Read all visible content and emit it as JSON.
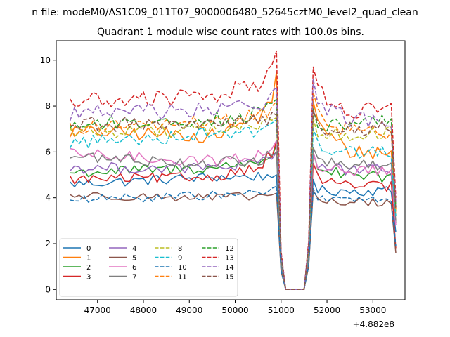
{
  "figure": {
    "suptitle": "n file: modeM0/AS1C09_011T07_9000006480_52645cztM0_level2_quad_clean"
  },
  "chart_data": {
    "type": "line",
    "title": "Quadrant 1 module wise count rates with 100.0s bins.",
    "xlabel": "",
    "ylabel": "",
    "xlim": [
      46100,
      53700
    ],
    "ylim": [
      -0.45,
      10.85
    ],
    "x_offset_label": "+4.882e8",
    "xticks": [
      47000,
      48000,
      49000,
      50000,
      51000,
      52000,
      53000
    ],
    "xtick_labels": [
      "47000",
      "48000",
      "49000",
      "50000",
      "51000",
      "52000",
      "53000"
    ],
    "yticks": [
      0,
      2,
      4,
      6,
      8,
      10
    ],
    "ytick_labels": [
      "0",
      "2",
      "4",
      "6",
      "8",
      "10"
    ],
    "grid": false,
    "legend_position": "lower-left",
    "legend_columns": 4,
    "x_start": 46400,
    "x_step": 100,
    "n_points": 72,
    "profile": {
      "gap_start_x": 51000,
      "gap_end_x": 51600,
      "peak_before_gap_x": 50900,
      "peak_after_gap_x": 51700,
      "last_x": 53500
    },
    "series": [
      {
        "name": "0",
        "color": "#1f77b4",
        "dash": "solid",
        "level_start": 4.6,
        "level_mid": 4.9,
        "level_end": 4.3,
        "peak_before": 5.0,
        "peak_after": 4.8,
        "end_value": 2.5
      },
      {
        "name": "1",
        "color": "#ff7f0e",
        "dash": "solid",
        "level_start": 6.9,
        "level_mid": 6.7,
        "level_end": 6.0,
        "peak_before": 9.5,
        "peak_after": 8.2,
        "end_value": 3.2
      },
      {
        "name": "2",
        "color": "#2ca02c",
        "dash": "solid",
        "level_start": 5.1,
        "level_mid": 5.3,
        "level_end": 4.9,
        "peak_before": 6.3,
        "peak_after": 6.0,
        "end_value": 2.9
      },
      {
        "name": "3",
        "color": "#d62728",
        "dash": "solid",
        "level_start": 4.8,
        "level_mid": 4.9,
        "level_end": 4.5,
        "peak_before": 6.5,
        "peak_after": 5.5,
        "end_value": 1.8
      },
      {
        "name": "4",
        "color": "#9467bd",
        "dash": "solid",
        "level_start": 5.3,
        "level_mid": 5.3,
        "level_end": 5.2,
        "peak_before": 6.0,
        "peak_after": 6.0,
        "end_value": 2.8
      },
      {
        "name": "5",
        "color": "#8c564b",
        "dash": "solid",
        "level_start": 4.1,
        "level_mid": 4.0,
        "level_end": 3.8,
        "peak_before": 4.2,
        "peak_after": 4.3,
        "end_value": 1.6
      },
      {
        "name": "6",
        "color": "#e377c2",
        "dash": "solid",
        "level_start": 5.9,
        "level_mid": 5.6,
        "level_end": 5.2,
        "peak_before": 6.5,
        "peak_after": 6.0,
        "end_value": 2.8
      },
      {
        "name": "7",
        "color": "#7f7f7f",
        "dash": "solid",
        "level_start": 5.8,
        "level_mid": 5.5,
        "level_end": 5.4,
        "peak_before": 6.0,
        "peak_after": 6.2,
        "end_value": 3.0
      },
      {
        "name": "8",
        "color": "#bcbd22",
        "dash": "dashed",
        "level_start": 6.9,
        "level_mid": 7.0,
        "level_end": 6.8,
        "peak_before": 7.5,
        "peak_after": 7.5,
        "end_value": 3.4
      },
      {
        "name": "9",
        "color": "#17becf",
        "dash": "dashed",
        "level_start": 6.4,
        "level_mid": 6.8,
        "level_end": 6.0,
        "peak_before": 7.4,
        "peak_after": 7.0,
        "end_value": 3.2
      },
      {
        "name": "10",
        "color": "#1f77b4",
        "dash": "dashed",
        "level_start": 3.9,
        "level_mid": 4.1,
        "level_end": 3.9,
        "peak_before": 4.5,
        "peak_after": 4.4,
        "end_value": 1.9
      },
      {
        "name": "11",
        "color": "#ff7f0e",
        "dash": "dashed",
        "level_start": 7.0,
        "level_mid": 7.3,
        "level_end": 6.9,
        "peak_before": 8.2,
        "peak_after": 8.6,
        "end_value": 3.5
      },
      {
        "name": "12",
        "color": "#2ca02c",
        "dash": "dashed",
        "level_start": 7.2,
        "level_mid": 7.4,
        "level_end": 7.3,
        "peak_before": 8.3,
        "peak_after": 7.9,
        "end_value": 3.6
      },
      {
        "name": "13",
        "color": "#d62728",
        "dash": "dashed",
        "level_start": 8.2,
        "level_mid": 8.4,
        "level_end": 7.8,
        "peak_before": 10.4,
        "peak_after": 9.7,
        "end_value": 4.0
      },
      {
        "name": "14",
        "color": "#9467bd",
        "dash": "dashed",
        "level_start": 7.7,
        "level_mid": 7.8,
        "level_end": 7.4,
        "peak_before": 8.8,
        "peak_after": 9.2,
        "end_value": 3.8
      },
      {
        "name": "15",
        "color": "#8c564b",
        "dash": "dashed",
        "level_start": 7.2,
        "level_mid": 7.2,
        "level_end": 7.0,
        "peak_before": 7.6,
        "peak_after": 7.8,
        "end_value": 3.5
      }
    ]
  }
}
